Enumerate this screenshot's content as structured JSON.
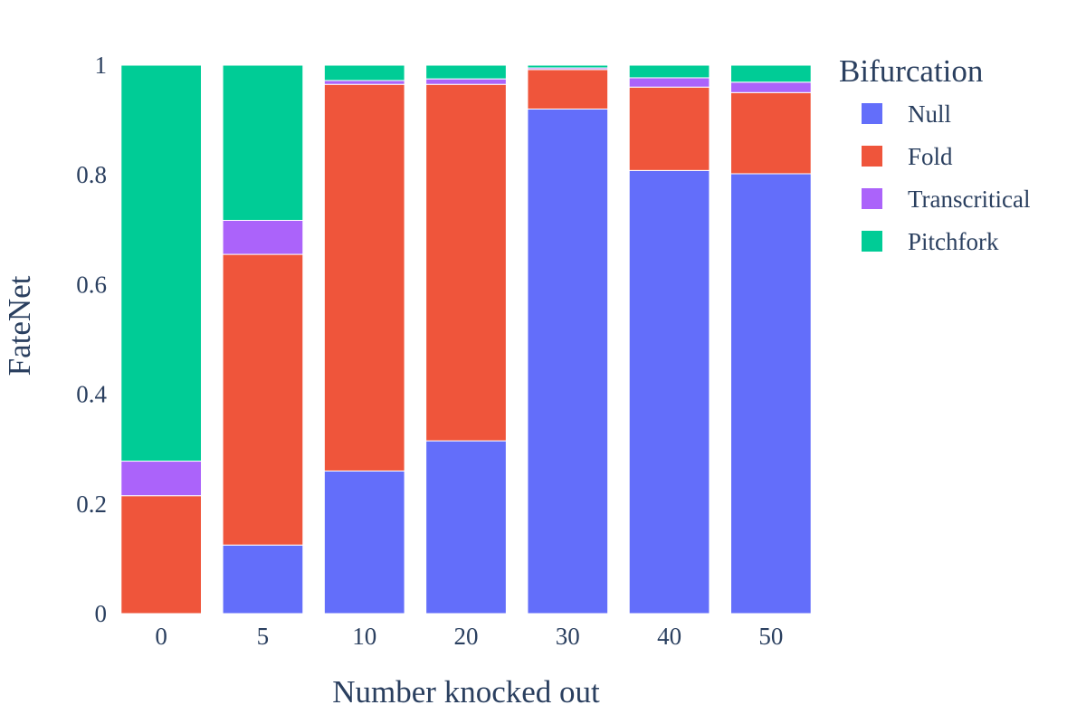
{
  "chart_data": {
    "type": "bar",
    "stacked": true,
    "categories": [
      "0",
      "5",
      "10",
      "20",
      "30",
      "40",
      "50"
    ],
    "series": [
      {
        "name": "Null",
        "color": "#636efa",
        "values": [
          0.0,
          0.125,
          0.26,
          0.315,
          0.92,
          0.808,
          0.802
        ]
      },
      {
        "name": "Fold",
        "color": "#ef553b",
        "values": [
          0.215,
          0.53,
          0.705,
          0.65,
          0.072,
          0.152,
          0.148
        ]
      },
      {
        "name": "Transcritical",
        "color": "#ab63fa",
        "values": [
          0.063,
          0.062,
          0.007,
          0.01,
          0.003,
          0.017,
          0.019
        ]
      },
      {
        "name": "Pitchfork",
        "color": "#00cc96",
        "values": [
          0.722,
          0.283,
          0.028,
          0.025,
          0.005,
          0.023,
          0.031
        ]
      }
    ],
    "xlabel": "Number knocked out",
    "ylabel": "FateNet",
    "ylim": [
      0,
      1
    ],
    "yticks": [
      0,
      0.2,
      0.4,
      0.6,
      0.8,
      1
    ],
    "ytick_labels": [
      "0",
      "0.2",
      "0.4",
      "0.6",
      "0.8",
      "1"
    ],
    "legend": {
      "title": "Bifurcation",
      "position": "top-right"
    },
    "grid": false
  }
}
